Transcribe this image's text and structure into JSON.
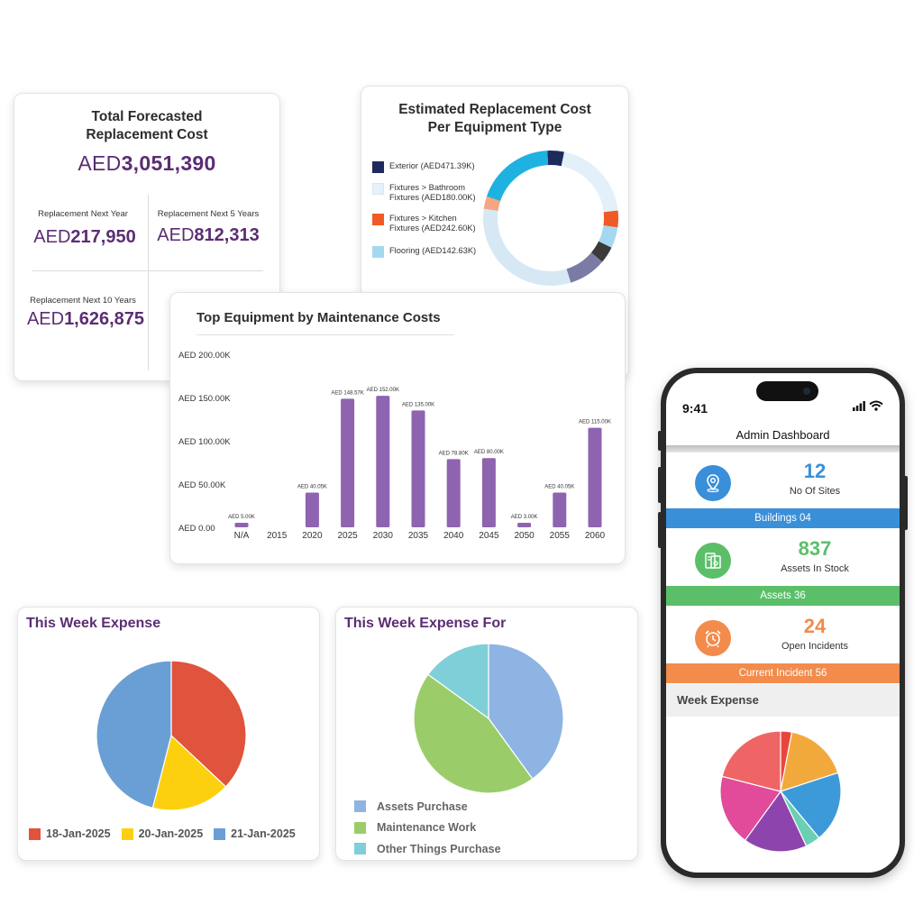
{
  "total_card": {
    "title_line1": "Total Forecasted",
    "title_line2": "Replacement Cost",
    "currency": "AED",
    "total_value": "3,051,390",
    "next_year_label": "Replacement Next Year",
    "next_year_value": "217,950",
    "next_5_label": "Replacement Next 5 Years",
    "next_5_value": "812,313",
    "next_10_label": "Replacement Next 10 Years",
    "next_10_value": "1,626,875"
  },
  "donut_card": {
    "title_line1": "Estimated Replacement Cost",
    "title_line2": "Per Equipment Type",
    "legend": [
      {
        "line1": "Exterior (AED471.39K)",
        "line2": "",
        "color": "#1f2a5c"
      },
      {
        "line1": "Fixtures > Bathroom",
        "line2": "Fixtures (AED180.00K)",
        "color": "#e6f1f9"
      },
      {
        "line1": "Fixtures > Kitchen",
        "line2": "Fixtures (AED242.60K)",
        "color": "#f15a24"
      },
      {
        "line1": "Flooring (AED142.63K)",
        "line2": "",
        "color": "#a5d8ef"
      }
    ],
    "chart_data": {
      "type": "pie",
      "segments": [
        {
          "label": "Navy",
          "value": 4,
          "color": "#1f2a5c"
        },
        {
          "label": "Light",
          "value": 20,
          "color": "#e3f0f9"
        },
        {
          "label": "Orange",
          "value": 4,
          "color": "#f15a24"
        },
        {
          "label": "Light Blue",
          "value": 5,
          "color": "#a5d8ef"
        },
        {
          "label": "Dark",
          "value": 4,
          "color": "#3a3a3a"
        },
        {
          "label": "Slate",
          "value": 9,
          "color": "#7b7ba5"
        },
        {
          "label": "Pale",
          "value": 32,
          "color": "#d6e8f4"
        },
        {
          "label": "Peach",
          "value": 3,
          "color": "#f4a582"
        },
        {
          "label": "Cyan",
          "value": 19,
          "color": "#1fb1e0"
        }
      ]
    }
  },
  "bar_card": {
    "title": "Top Equipment by Maintenance Costs",
    "chart_data": {
      "type": "bar",
      "categories": [
        "N/A",
        "2015",
        "2020",
        "2025",
        "2030",
        "2035",
        "2040",
        "2045",
        "2050",
        "2055",
        "2060"
      ],
      "values": [
        5.0,
        0,
        40.05,
        148.57,
        152.0,
        135.0,
        78.8,
        80.0,
        3.0,
        40.05,
        115.0
      ],
      "data_labels": [
        "AED 5.00K",
        "",
        "AED 40.05K",
        "AED 148.57K",
        "AED 152.00K",
        "AED 135.00K",
        "AED 78.80K",
        "AED 80.00K",
        "AED 3.00K",
        "AED 40.05K",
        "AED 115.00K"
      ],
      "y_ticks": [
        0,
        50,
        100,
        150,
        200
      ],
      "y_tick_labels": [
        "AED 0.00",
        "AED 50.00K",
        "AED 100.00K",
        "AED 150.00K",
        "AED 200.00K"
      ],
      "ylim": [
        0,
        200
      ],
      "color": "#8e63b0"
    }
  },
  "week_card": {
    "title": "This Week Expense",
    "chart_data": {
      "type": "pie",
      "segments": [
        {
          "label": "18-Jan-2025",
          "value": 37,
          "color": "#e0533d"
        },
        {
          "label": "20-Jan-2025",
          "value": 17,
          "color": "#fcd00f"
        },
        {
          "label": "21-Jan-2025",
          "value": 46,
          "color": "#6a9fd6"
        }
      ]
    }
  },
  "for_card": {
    "title": "This Week Expense For",
    "chart_data": {
      "type": "pie",
      "segments": [
        {
          "label": "Assets Purchase",
          "value": 40,
          "color": "#8eb4e3"
        },
        {
          "label": "Maintenance Work",
          "value": 45,
          "color": "#9acd6a"
        },
        {
          "label": "Other Things Purchase",
          "value": 15,
          "color": "#7fcfd9"
        }
      ]
    }
  },
  "phone": {
    "time": "9:41",
    "app_title": "Admin Dashboard",
    "sites_num": "12",
    "sites_label": "No Of Sites",
    "buildings_strip": "Buildings 04",
    "stock_num": "837",
    "stock_label": "Assets In Stock",
    "assets_strip": "Assets 36",
    "incidents_num": "24",
    "incidents_label": "Open Incidents",
    "incident_strip": "Current Incident 56",
    "week_expense_label": "Week Expense",
    "colors": {
      "blue": "#3a8fd9",
      "green": "#5bbf6a",
      "orange": "#f28b4b"
    },
    "chart_data": {
      "type": "pie",
      "segments": [
        {
          "value": 3,
          "color": "#e8453c"
        },
        {
          "value": 17,
          "color": "#f2a93b"
        },
        {
          "value": 19,
          "color": "#3d9ad9"
        },
        {
          "value": 4,
          "color": "#6acfb3"
        },
        {
          "value": 17,
          "color": "#8e44ad"
        },
        {
          "value": 19,
          "color": "#e24a9a"
        },
        {
          "value": 21,
          "color": "#ef6565"
        }
      ]
    }
  }
}
